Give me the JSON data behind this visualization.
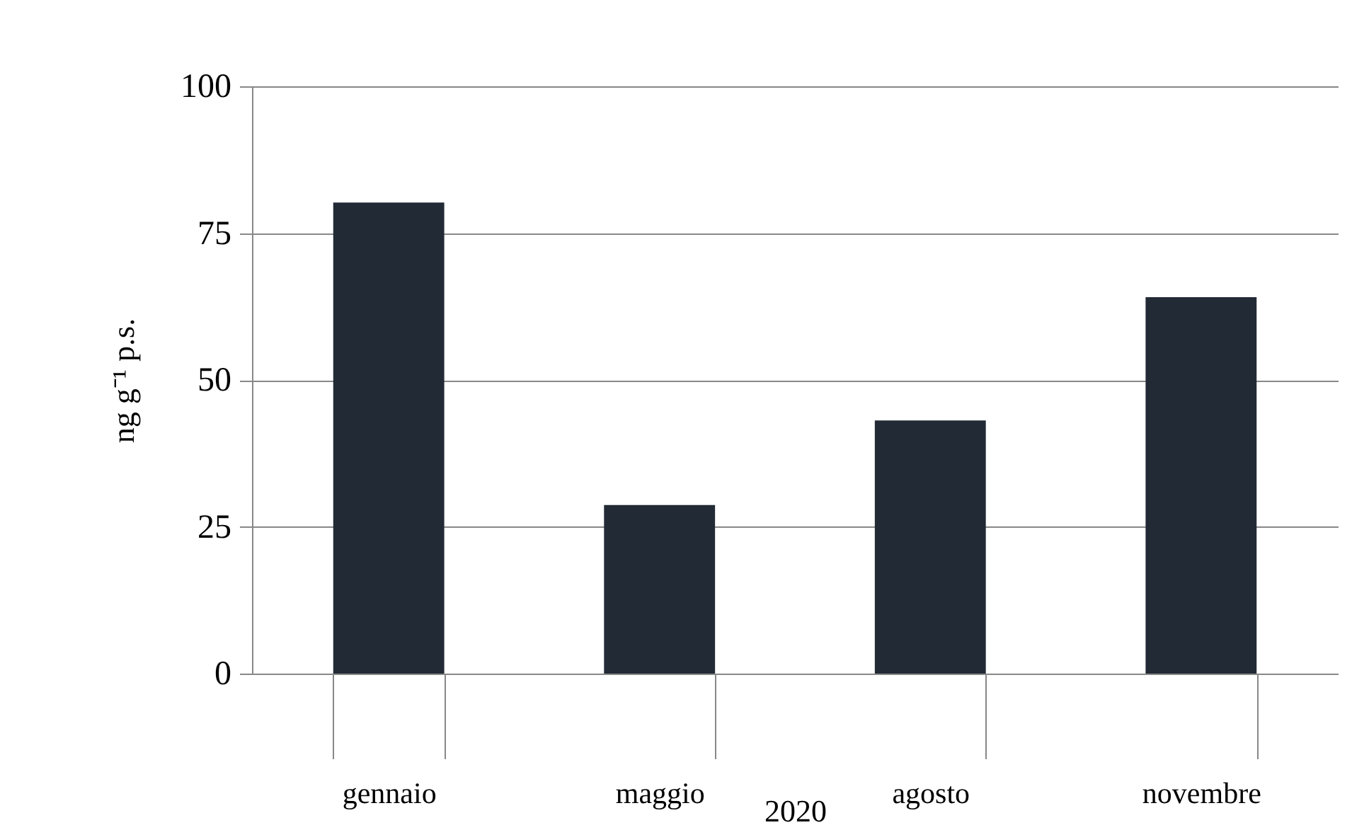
{
  "chart_data": {
    "type": "bar",
    "categories": [
      "gennaio",
      "maggio",
      "agosto",
      "novembre"
    ],
    "values": [
      80.2,
      28.7,
      43.1,
      64.1
    ],
    "color": "#222a35",
    "xlabel": "2020",
    "ylabel": "ng g⁻¹ p.s.",
    "ylim": [
      0,
      100
    ],
    "yticks": [
      0,
      25,
      50,
      75,
      100
    ],
    "grid": "y"
  }
}
